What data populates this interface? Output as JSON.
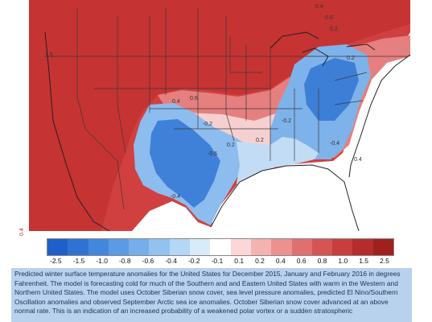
{
  "map": {
    "side_tick": "0.4",
    "contour_labels": [
      "0.4",
      "0.6",
      "0.2",
      "0.2",
      "0.4",
      "0.6",
      "-0.2",
      "0.2",
      "-0.2",
      "-0.6",
      "0.2",
      "-0.4",
      "-0.4",
      "1.5",
      "0.4"
    ]
  },
  "colorbar": {
    "labels": [
      "-2.5",
      "-1.5",
      "-1.0",
      "-0.8",
      "-0.6",
      "-0.4",
      "-0.2",
      "-0.1",
      "0.1",
      "0.2",
      "0.4",
      "0.6",
      "0.8",
      "1.0",
      "1.5",
      "2.5"
    ],
    "colors": [
      "#1f5fc8",
      "#2f72d4",
      "#4287dc",
      "#5a9be4",
      "#75aeea",
      "#92c2f0",
      "#b4d7f5",
      "#d9ebfa",
      "#ffffff",
      "#fbd7d7",
      "#f4b3b3",
      "#ec9090",
      "#e07070",
      "#d55555",
      "#c83e3e",
      "#b52c2c",
      "#a01f1f"
    ]
  },
  "caption": {
    "text": "Predicted winter surface temperature anomalies for the United States for December 2015, January and February 2016 in degrees Fahrenheit. The model is forecasting cold for much of the Southern and and Eastern United States with warm in the Western and Northern United States. The model uses October Siberian snow cover, sea level pressure anomalies, predicted El Nino/Southern Oscillation anomalies and observed September Arctic sea ice anomalies. October Siberian snow cover advanced at an above normal rate. This is an indication of an increased probability of a weakened polar vortex or a sudden stratospheric"
  }
}
